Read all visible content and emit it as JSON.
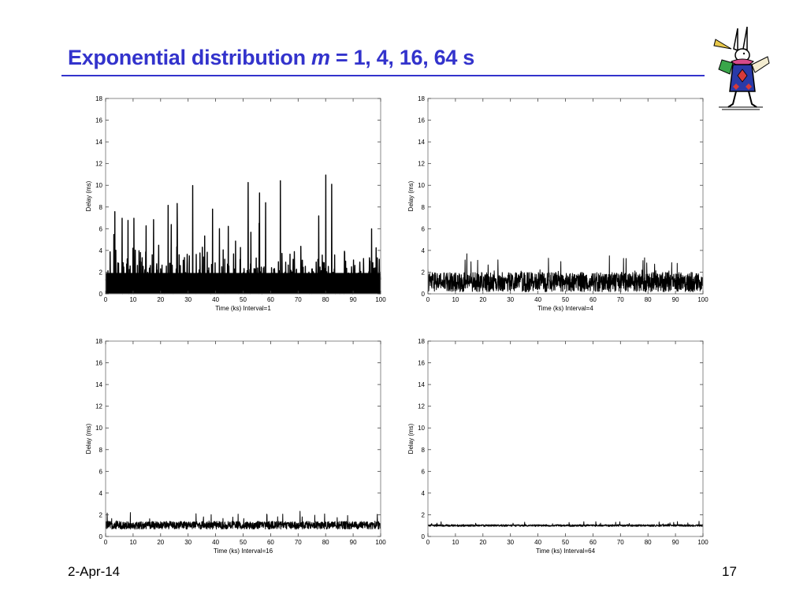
{
  "slide": {
    "title_prefix": "Exponential distribution ",
    "title_var": "m",
    "title_suffix": " = 1, 4, 16, 64 s",
    "footer_date": "2-Apr-14",
    "page_number": "17",
    "logo_icon": "white-rabbit-illustration",
    "accent_color": "#3333cc"
  },
  "chart_data": [
    {
      "type": "line",
      "xlabel": "Time (ks) Interval=1",
      "ylabel": "Delay (ms)",
      "xlim": [
        0,
        100
      ],
      "ylim": [
        0,
        18
      ],
      "xticks": [
        0,
        10,
        20,
        30,
        40,
        50,
        60,
        70,
        80,
        90,
        100
      ],
      "yticks": [
        0,
        2,
        4,
        6,
        8,
        10,
        12,
        14,
        16,
        18
      ],
      "grid": false,
      "series_color": "#000000",
      "mean": 1.0,
      "dense_band_max": 3.5,
      "peak": 11.0
    },
    {
      "type": "line",
      "xlabel": "Time (ks) Interval=4",
      "ylabel": "Delay (ms)",
      "xlim": [
        0,
        100
      ],
      "ylim": [
        0,
        18
      ],
      "xticks": [
        0,
        10,
        20,
        30,
        40,
        50,
        60,
        70,
        80,
        90,
        100
      ],
      "yticks": [
        0,
        2,
        4,
        6,
        8,
        10,
        12,
        14,
        16,
        18
      ],
      "grid": false,
      "series_color": "#000000",
      "mean": 1.0,
      "dense_band_max": 2.0,
      "peak": 3.9
    },
    {
      "type": "line",
      "xlabel": "Time (ks) Interval=16",
      "ylabel": "Delay (ms)",
      "xlim": [
        0,
        100
      ],
      "ylim": [
        0,
        18
      ],
      "xticks": [
        0,
        10,
        20,
        30,
        40,
        50,
        60,
        70,
        80,
        90,
        100
      ],
      "yticks": [
        0,
        2,
        4,
        6,
        8,
        10,
        12,
        14,
        16,
        18
      ],
      "grid": false,
      "series_color": "#000000",
      "mean": 1.0,
      "dense_band_max": 1.4,
      "peak": 2.4
    },
    {
      "type": "line",
      "xlabel": "Time (ks) Interval=64",
      "ylabel": "Delay (ms)",
      "xlim": [
        0,
        100
      ],
      "ylim": [
        0,
        18
      ],
      "xticks": [
        0,
        10,
        20,
        30,
        40,
        50,
        60,
        70,
        80,
        90,
        100
      ],
      "yticks": [
        0,
        2,
        4,
        6,
        8,
        10,
        12,
        14,
        16,
        18
      ],
      "grid": false,
      "series_color": "#000000",
      "mean": 1.0,
      "dense_band_max": 1.1,
      "peak": 1.4
    }
  ]
}
